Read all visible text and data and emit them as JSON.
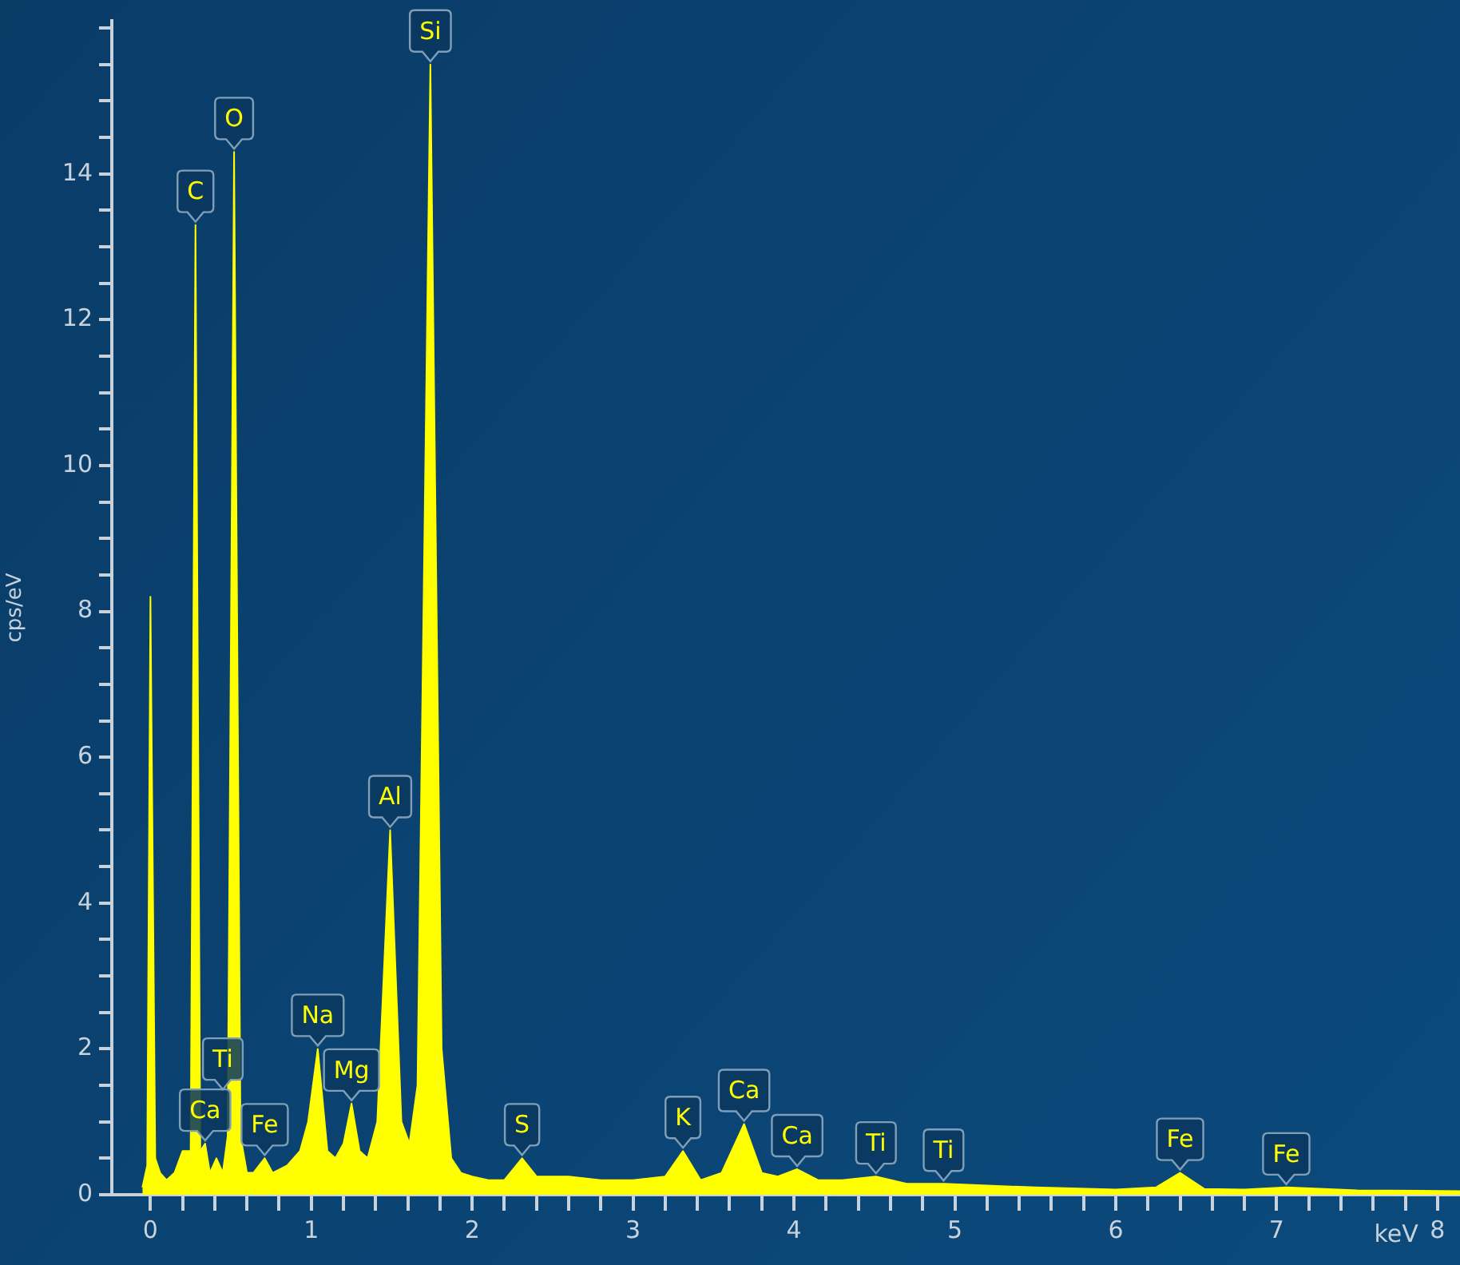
{
  "chart_data": {
    "type": "area",
    "xlabel": "keV",
    "ylabel": "cps/eV",
    "x": [
      -0.05,
      -0.02,
      0.0,
      0.03,
      0.06,
      0.1,
      0.15,
      0.2,
      0.25,
      0.28,
      0.31,
      0.34,
      0.37,
      0.41,
      0.45,
      0.48,
      0.52,
      0.56,
      0.6,
      0.64,
      0.71,
      0.76,
      0.85,
      0.93,
      0.98,
      1.04,
      1.1,
      1.15,
      1.2,
      1.25,
      1.3,
      1.35,
      1.41,
      1.49,
      1.56,
      1.61,
      1.66,
      1.74,
      1.81,
      1.87,
      1.93,
      2.0,
      2.1,
      2.2,
      2.31,
      2.4,
      2.6,
      2.8,
      3.0,
      3.2,
      3.31,
      3.42,
      3.55,
      3.69,
      3.8,
      3.9,
      4.02,
      4.15,
      4.3,
      4.51,
      4.7,
      4.93,
      5.5,
      6.0,
      6.25,
      6.4,
      6.55,
      6.8,
      7.06,
      7.5,
      8.14
    ],
    "series": [
      {
        "color": "#ffff00",
        "values": [
          0.1,
          0.4,
          8.2,
          0.5,
          0.3,
          0.2,
          0.3,
          0.6,
          0.6,
          13.3,
          0.6,
          0.7,
          0.3,
          0.5,
          0.3,
          0.8,
          14.3,
          0.8,
          0.3,
          0.3,
          0.5,
          0.3,
          0.4,
          0.6,
          1.0,
          2.0,
          0.6,
          0.5,
          0.7,
          1.25,
          0.6,
          0.5,
          1.0,
          5.0,
          1.0,
          0.7,
          1.5,
          15.5,
          2.0,
          0.5,
          0.3,
          0.25,
          0.2,
          0.2,
          0.5,
          0.25,
          0.25,
          0.2,
          0.2,
          0.25,
          0.6,
          0.2,
          0.3,
          0.97,
          0.3,
          0.25,
          0.35,
          0.2,
          0.2,
          0.25,
          0.15,
          0.15,
          0.1,
          0.07,
          0.1,
          0.3,
          0.08,
          0.07,
          0.1,
          0.06,
          0.05
        ]
      }
    ],
    "xlim": [
      -0.24,
      8.14
    ],
    "xticks": [
      0,
      {
        "value": 0.2,
        "label": null
      },
      {
        "value": 0.4,
        "label": null
      },
      {
        "value": 0.6,
        "label": null
      },
      {
        "value": 0.8,
        "label": null
      },
      1,
      {
        "value": 1.2,
        "label": null
      },
      {
        "value": 1.4,
        "label": null
      },
      {
        "value": 1.6,
        "label": null
      },
      {
        "value": 1.8,
        "label": null
      },
      2,
      {
        "value": 2.2,
        "label": null
      },
      {
        "value": 2.4,
        "label": null
      },
      {
        "value": 2.6,
        "label": null
      },
      {
        "value": 2.8,
        "label": null
      },
      3,
      {
        "value": 3.2,
        "label": null
      },
      {
        "value": 3.4,
        "label": null
      },
      {
        "value": 3.6,
        "label": null
      },
      {
        "value": 3.8,
        "label": null
      },
      4,
      {
        "value": 4.2,
        "label": null
      },
      {
        "value": 4.4,
        "label": null
      },
      {
        "value": 4.6,
        "label": null
      },
      {
        "value": 4.8,
        "label": null
      },
      5,
      {
        "value": 5.2,
        "label": null
      },
      {
        "value": 5.4,
        "label": null
      },
      {
        "value": 5.6,
        "label": null
      },
      {
        "value": 5.8,
        "label": null
      },
      6,
      {
        "value": 6.2,
        "label": null
      },
      {
        "value": 6.4,
        "label": null
      },
      {
        "value": 6.6,
        "label": null
      },
      {
        "value": 6.8,
        "label": null
      },
      7,
      {
        "value": 7.2,
        "label": null
      },
      {
        "value": 7.4,
        "label": null
      },
      {
        "value": 7.6,
        "label": null
      },
      {
        "value": 7.8,
        "label": null
      },
      8
    ],
    "ylim": [
      0,
      16.1
    ],
    "yticks": [
      0,
      {
        "value": 0.5,
        "label": null
      },
      {
        "value": 1,
        "label": null
      },
      {
        "value": 1.5,
        "label": null
      },
      2,
      {
        "value": 2.5,
        "label": null
      },
      {
        "value": 3,
        "label": null
      },
      {
        "value": 3.5,
        "label": null
      },
      4,
      {
        "value": 4.5,
        "label": null
      },
      {
        "value": 5,
        "label": null
      },
      {
        "value": 5.5,
        "label": null
      },
      6,
      {
        "value": 6.5,
        "label": null
      },
      {
        "value": 7,
        "label": null
      },
      {
        "value": 7.5,
        "label": null
      },
      8,
      {
        "value": 8.5,
        "label": null
      },
      {
        "value": 9,
        "label": null
      },
      {
        "value": 9.5,
        "label": null
      },
      10,
      {
        "value": 10.5,
        "label": null
      },
      {
        "value": 11,
        "label": null
      },
      {
        "value": 11.5,
        "label": null
      },
      12,
      {
        "value": 12.5,
        "label": null
      },
      {
        "value": 13,
        "label": null
      },
      {
        "value": 13.5,
        "label": null
      },
      14,
      {
        "value": 14.5,
        "label": null
      },
      {
        "value": 15,
        "label": null
      },
      {
        "value": 15.5,
        "label": null
      },
      {
        "value": 16,
        "label": null
      }
    ],
    "grid": false,
    "legend": false,
    "annotations": [
      {
        "text": "C",
        "x": 0.28,
        "y": 13.3
      },
      {
        "text": "O",
        "x": 0.52,
        "y": 14.3
      },
      {
        "text": "Si",
        "x": 1.74,
        "y": 15.5
      },
      {
        "text": "Ca",
        "x": 0.34,
        "y": 0.7
      },
      {
        "text": "Ti",
        "x": 0.45,
        "y": 1.4
      },
      {
        "text": "Fe",
        "x": 0.71,
        "y": 0.5
      },
      {
        "text": "Na",
        "x": 1.04,
        "y": 2.0
      },
      {
        "text": "Mg",
        "x": 1.25,
        "y": 1.25
      },
      {
        "text": "Al",
        "x": 1.49,
        "y": 5.0
      },
      {
        "text": "S",
        "x": 2.31,
        "y": 0.5
      },
      {
        "text": "K",
        "x": 3.31,
        "y": 0.6
      },
      {
        "text": "Ca",
        "x": 3.69,
        "y": 0.97
      },
      {
        "text": "Ca",
        "x": 4.02,
        "y": 0.35
      },
      {
        "text": "Ti",
        "x": 4.51,
        "y": 0.25
      },
      {
        "text": "Ti",
        "x": 4.93,
        "y": 0.15
      },
      {
        "text": "Fe",
        "x": 6.4,
        "y": 0.3
      },
      {
        "text": "Fe",
        "x": 7.06,
        "y": 0.1
      }
    ]
  }
}
